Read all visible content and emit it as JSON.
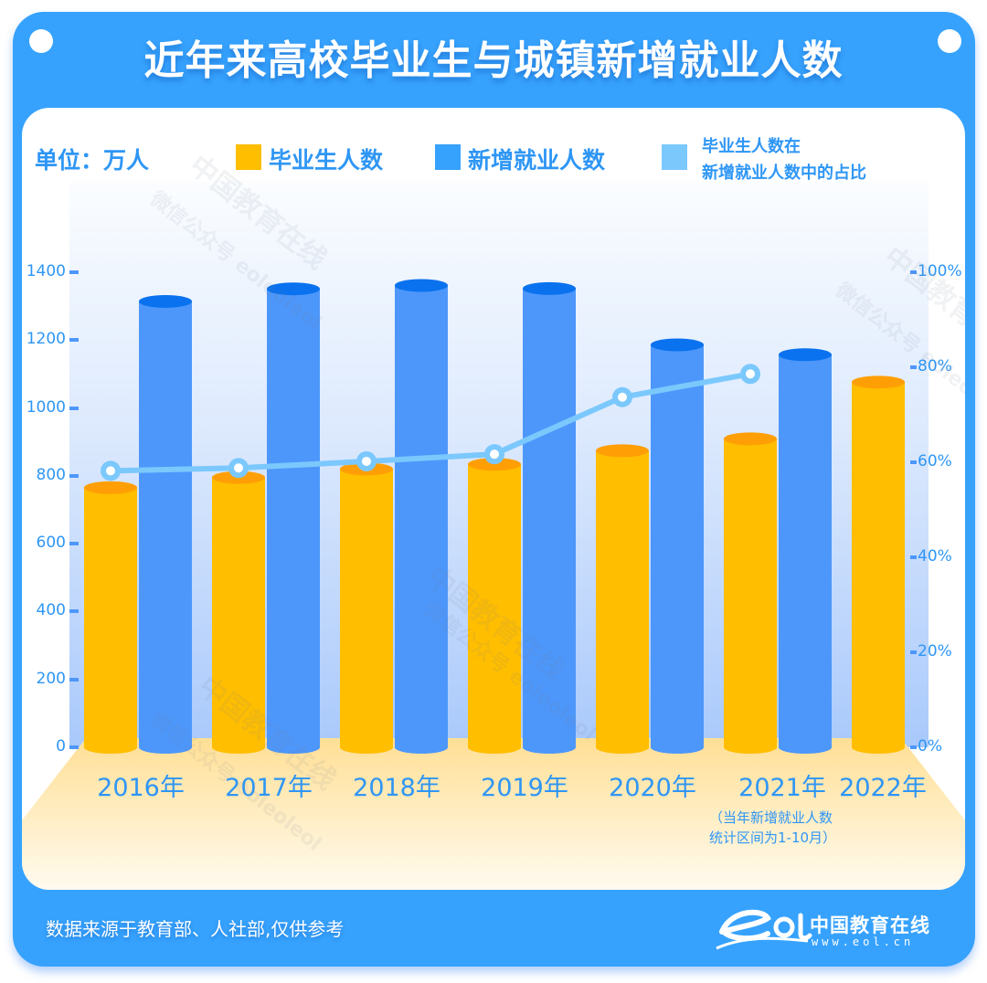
{
  "title": "近年来高校毕业生与城镇新增就业人数",
  "legend": {
    "unit": "单位：万人",
    "graduates": "毕业生人数",
    "new_jobs": "新增就业人数",
    "ratio_line1": "毕业生人数在",
    "ratio_line2": "新增就业人数中的占比"
  },
  "colors": {
    "frame": "#36a2fd",
    "graduates": "#ffbe00",
    "graduates_top": "#ff9f05",
    "new_jobs": "#4d97fb",
    "new_jobs_top": "#0a72ee",
    "ratio_line": "#7bc8fd",
    "text": "#2e96f5"
  },
  "y_left_ticks": [
    "0",
    "200",
    "400",
    "600",
    "800",
    "1000",
    "1200",
    "1400"
  ],
  "y_right_ticks": [
    "0%",
    "20%",
    "40%",
    "60%",
    "80%",
    "100%"
  ],
  "x_labels": [
    "2016年",
    "2017年",
    "2018年",
    "2019年",
    "2020年",
    "2021年",
    "2022年"
  ],
  "note_line1": "（当年新增就业人数",
  "note_line2": "统计区间为1-10月）",
  "footer": {
    "source": "数据来源于教育部、人社部,仅供参考",
    "logo_cn": "中国教育在线",
    "logo_url": "www.eol.cn"
  },
  "watermark": {
    "line1": "中国教育在线",
    "line2": "微信公众号 eoleoleol"
  },
  "chart_data": {
    "type": "bar",
    "title": "近年来高校毕业生与城镇新增就业人数",
    "categories": [
      "2016",
      "2017",
      "2018",
      "2019",
      "2020",
      "2021",
      "2022"
    ],
    "series": [
      {
        "name": "毕业生人数",
        "type": "bar",
        "axis": "left",
        "values": [
          765,
          795,
          820,
          834,
          874,
          909,
          1076
        ]
      },
      {
        "name": "新增就业人数",
        "type": "bar",
        "axis": "left",
        "values": [
          1314,
          1351,
          1361,
          1352,
          1186,
          1157,
          null
        ]
      },
      {
        "name": "毕业生人数在新增就业人数中的占比",
        "type": "line",
        "axis": "right",
        "values": [
          58.2,
          58.8,
          60.2,
          61.7,
          73.7,
          78.6,
          null
        ]
      }
    ],
    "xlabel": "",
    "ylabel": "万人",
    "ylim": [
      0,
      1400
    ],
    "y2lim": [
      0,
      100
    ],
    "y2label": "%",
    "grid": false,
    "legend_position": "top",
    "annotations": [
      "2021年（当年新增就业人数统计区间为1-10月）"
    ]
  }
}
